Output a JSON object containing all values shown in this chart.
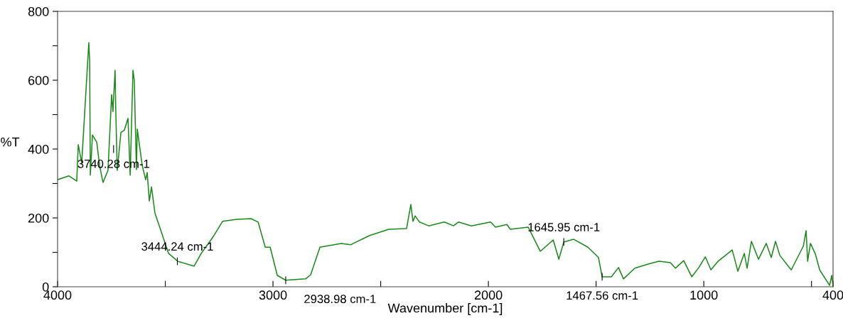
{
  "chart_data": {
    "type": "line",
    "xlabel": "Wavenumber [cm-1]",
    "ylabel": "%T",
    "xlim": [
      4000,
      400
    ],
    "ylim": [
      0,
      800
    ],
    "xticks": [
      4000,
      {
        "value": 3500,
        "label": null
      },
      3000,
      {
        "value": 2500,
        "label": null
      },
      2000,
      {
        "value": 1500,
        "label": null
      },
      1000,
      {
        "value": 500,
        "label": null
      },
      400
    ],
    "yticks": [
      0,
      {
        "value": 100,
        "label": null
      },
      200,
      {
        "value": 300,
        "label": null
      },
      400,
      {
        "value": 500,
        "label": null
      },
      600,
      {
        "value": 700,
        "label": null
      },
      800
    ],
    "grid": false,
    "legend": false,
    "marker": "none",
    "line_style": "solid",
    "series": [
      {
        "color": "#1a8a1a",
        "x": [
          4000,
          3947,
          3911,
          3904,
          3888,
          3855,
          3851,
          3848,
          3838,
          3818,
          3805,
          3789,
          3766,
          3749,
          3743,
          3733,
          3730,
          3723,
          3706,
          3690,
          3673,
          3663,
          3650,
          3644,
          3634,
          3630,
          3607,
          3591,
          3584,
          3574,
          3564,
          3548,
          3518,
          3485,
          3442,
          3366,
          3333,
          3277,
          3234,
          3168,
          3102,
          3069,
          3036,
          3013,
          2980,
          2941,
          2848,
          2825,
          2782,
          2683,
          2640,
          2551,
          2462,
          2380,
          2360,
          2350,
          2340,
          2320,
          2277,
          2205,
          2162,
          2139,
          2079,
          1990,
          1967,
          1914,
          1898,
          1815,
          1759,
          1699,
          1673,
          1650,
          1604,
          1538,
          1489,
          1472,
          1429,
          1396,
          1373,
          1320,
          1258,
          1208,
          1155,
          1132,
          1093,
          1056,
          1023,
          993,
          967,
          934,
          868,
          842,
          812,
          799,
          779,
          746,
          710,
          687,
          667,
          647,
          594,
          538,
          525,
          518,
          505,
          482,
          462,
          416,
          406,
          400
        ],
        "values": [
          311,
          322,
          307,
          413,
          359,
          709,
          654,
          324,
          441,
          420,
          352,
          303,
          338,
          558,
          509,
          629,
          517,
          338,
          448,
          455,
          489,
          324,
          629,
          600,
          340,
          458,
          352,
          311,
          332,
          249,
          290,
          214,
          159,
          97,
          74,
          60,
          97,
          146,
          190,
          196,
          198,
          188,
          115,
          115,
          33,
          19,
          23,
          35,
          115,
          126,
          122,
          149,
          167,
          169,
          239,
          190,
          206,
          188,
          177,
          188,
          177,
          188,
          177,
          188,
          173,
          181,
          167,
          173,
          103,
          136,
          80,
          130,
          138,
          115,
          85,
          29,
          29,
          56,
          23,
          54,
          66,
          74,
          70,
          54,
          76,
          29,
          56,
          87,
          49,
          74,
          107,
          45,
          97,
          54,
          132,
          80,
          126,
          85,
          132,
          91,
          49,
          118,
          163,
          74,
          126,
          95,
          49,
          4,
          33,
          2
        ]
      }
    ],
    "annotations": [
      {
        "text": "3740.28 cm-1",
        "x": 3740,
        "y": 400
      },
      {
        "text": "3444.24 cm-1",
        "x": 3444,
        "y": 74
      },
      {
        "text": "2938.98 cm-1",
        "x": 2941,
        "y": 19
      },
      {
        "text": "1645.95 cm-1",
        "x": 1650,
        "y": 130
      },
      {
        "text": "1467.56 cm-1",
        "x": 1472,
        "y": 29
      }
    ]
  }
}
